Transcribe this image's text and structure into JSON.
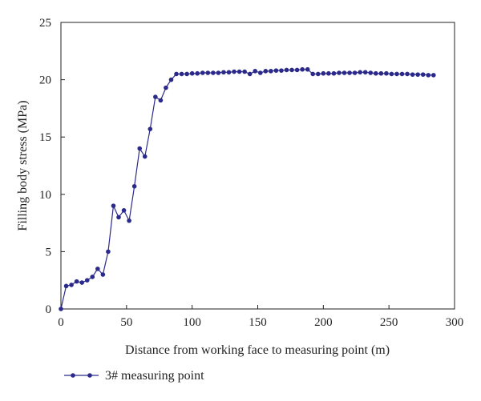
{
  "chart_data": {
    "type": "line",
    "title": "",
    "xlabel": "Distance from working face to measuring point (m)",
    "ylabel": "Filling body stress (MPa)",
    "xlim": [
      0,
      300
    ],
    "ylim": [
      0,
      25
    ],
    "xticks": [
      0,
      50,
      100,
      150,
      200,
      250,
      300
    ],
    "yticks": [
      0,
      5,
      10,
      15,
      20,
      25
    ],
    "grid": false,
    "legend_position": "bottom-left",
    "series": [
      {
        "name": "3# measuring point",
        "color": "#2b2a8a",
        "marker": "circle",
        "x": [
          0,
          4,
          8,
          12,
          16,
          20,
          24,
          28,
          32,
          36,
          40,
          44,
          48,
          52,
          56,
          60,
          64,
          68,
          72,
          76,
          80,
          84,
          88,
          92,
          96,
          100,
          104,
          108,
          112,
          116,
          120,
          124,
          128,
          132,
          136,
          140,
          144,
          148,
          152,
          156,
          160,
          164,
          168,
          172,
          176,
          180,
          184,
          188,
          192,
          196,
          200,
          204,
          208,
          212,
          216,
          220,
          224,
          228,
          232,
          236,
          240,
          244,
          248,
          252,
          256,
          260,
          264,
          268,
          272,
          276,
          280,
          284
        ],
        "y": [
          0,
          2.0,
          2.1,
          2.4,
          2.3,
          2.5,
          2.8,
          3.5,
          3.0,
          5.0,
          9.0,
          8.0,
          8.6,
          7.7,
          10.7,
          14.0,
          13.3,
          15.7,
          18.5,
          18.2,
          19.3,
          20.0,
          20.5,
          20.5,
          20.5,
          20.55,
          20.55,
          20.6,
          20.6,
          20.6,
          20.6,
          20.65,
          20.65,
          20.7,
          20.7,
          20.7,
          20.5,
          20.75,
          20.6,
          20.75,
          20.75,
          20.8,
          20.8,
          20.85,
          20.85,
          20.85,
          20.9,
          20.9,
          20.5,
          20.5,
          20.55,
          20.55,
          20.55,
          20.6,
          20.6,
          20.6,
          20.6,
          20.65,
          20.65,
          20.6,
          20.55,
          20.55,
          20.55,
          20.5,
          20.5,
          20.5,
          20.5,
          20.45,
          20.45,
          20.45,
          20.4,
          20.4
        ]
      }
    ]
  }
}
